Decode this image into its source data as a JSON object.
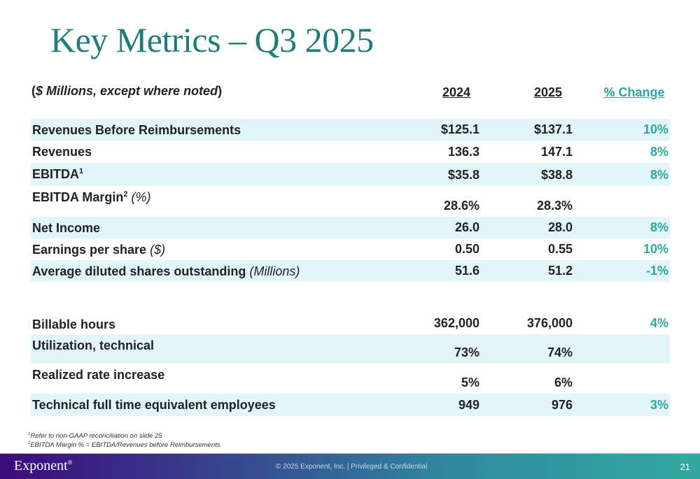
{
  "title": "Key Metrics – Q3 2025",
  "units_prefix": "(",
  "units_italic": "$ Millions, except where noted",
  "units_suffix": ")",
  "headers": {
    "y2024": "2024",
    "y2025": "2025",
    "change": "% Change"
  },
  "rows": [
    {
      "label": "Revenues Before Reimbursements",
      "v2024": "$125.1",
      "v2025": "$137.1",
      "change": "10%"
    },
    {
      "label": "Revenues",
      "v2024": "136.3",
      "v2025": "147.1",
      "change": "8%"
    },
    {
      "label": "EBITDA",
      "sup": "1",
      "v2024": "$35.8",
      "v2025": "$38.8",
      "change": "8%"
    },
    {
      "label": "EBITDA Margin",
      "sup": "2",
      "note": " (%)",
      "v2024": "28.6%",
      "v2025": "28.3%",
      "change": ""
    },
    {
      "label": "Net Income",
      "v2024": "26.0",
      "v2025": "28.0",
      "change": "8%"
    },
    {
      "label": "Earnings per share ",
      "note": "($)",
      "v2024": "0.50",
      "v2025": "0.55",
      "change": "10%"
    },
    {
      "label": "Average diluted shares outstanding ",
      "note": "(Millions)",
      "v2024": "51.6",
      "v2025": "51.2",
      "change": "-1%"
    },
    {
      "label": "Billable hours",
      "v2024": "362,000",
      "v2025": "376,000",
      "change": "4%"
    },
    {
      "label": "Utilization, technical",
      "v2024": "73%",
      "v2025": "74%",
      "change": ""
    },
    {
      "label": "Realized rate increase",
      "v2024": "5%",
      "v2025": "6%",
      "change": ""
    },
    {
      "label": "Technical full time equivalent employees",
      "v2024": "949",
      "v2025": "976",
      "change": "3%"
    }
  ],
  "footnotes": [
    {
      "sup": "1",
      "text": "Refer to non-GAAP reconciliation on slide 25"
    },
    {
      "sup": "2",
      "text": "EBITDA Margin % = EBITDA/Revenues before Reimbursements"
    }
  ],
  "footer": {
    "logo": "Exponent",
    "logo_mark": "®",
    "confidential": "© 2025 Exponent, Inc.  |  Privileged & Confidential",
    "page": "21"
  }
}
